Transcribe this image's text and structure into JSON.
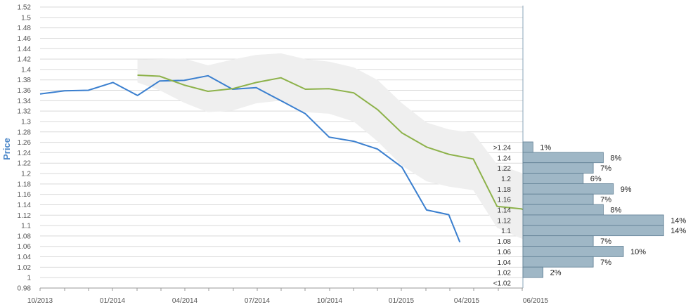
{
  "chart_data": {
    "type": "line",
    "ylabel": "Price",
    "xlabel": "",
    "ylim": [
      0.98,
      1.52
    ],
    "y_ticks": [
      "1.52",
      "1.5",
      "1.48",
      "1.46",
      "1.44",
      "1.42",
      "1.4",
      "1.38",
      "1.36",
      "1.34",
      "1.32",
      "1.3",
      "1.28",
      "1.26",
      "1.24",
      "1.22",
      "1.2",
      "1.18",
      "1.16",
      "1.14",
      "1.12",
      "1.1",
      "1.08",
      "1.06",
      "1.04",
      "1.02",
      "1",
      "0.98"
    ],
    "x_ticks": [
      "10/2013",
      "01/2014",
      "04/2014",
      "07/2014",
      "10/2014",
      "01/2015",
      "04/2015",
      "06/2015"
    ],
    "grid": true,
    "series": [
      {
        "color": "#3a7fcf",
        "points": [
          [
            "2013-10-01",
            1.353
          ],
          [
            "2013-11-01",
            1.359
          ],
          [
            "2013-12-01",
            1.36
          ],
          [
            "2014-01-01",
            1.375
          ],
          [
            "2014-02-01",
            1.35
          ],
          [
            "2014-03-01",
            1.378
          ],
          [
            "2014-04-01",
            1.379
          ],
          [
            "2014-05-01",
            1.388
          ],
          [
            "2014-06-01",
            1.362
          ],
          [
            "2014-07-01",
            1.365
          ],
          [
            "2014-08-01",
            1.34
          ],
          [
            "2014-09-01",
            1.315
          ],
          [
            "2014-10-01",
            1.27
          ],
          [
            "2014-11-01",
            1.262
          ],
          [
            "2014-12-01",
            1.247
          ],
          [
            "2015-01-01",
            1.212
          ],
          [
            "2015-02-01",
            1.13
          ],
          [
            "2015-03-01",
            1.121
          ],
          [
            "2015-03-15",
            1.068
          ]
        ]
      },
      {
        "color": "#8db24a",
        "points": [
          [
            "2014-02-01",
            1.389
          ],
          [
            "2014-03-01",
            1.387
          ],
          [
            "2014-04-01",
            1.37
          ],
          [
            "2014-05-01",
            1.358
          ],
          [
            "2014-06-01",
            1.363
          ],
          [
            "2014-07-01",
            1.375
          ],
          [
            "2014-08-01",
            1.384
          ],
          [
            "2014-09-01",
            1.362
          ],
          [
            "2014-10-01",
            1.363
          ],
          [
            "2014-11-01",
            1.355
          ],
          [
            "2014-12-01",
            1.323
          ],
          [
            "2015-01-01",
            1.278
          ],
          [
            "2015-02-01",
            1.251
          ],
          [
            "2015-03-01",
            1.237
          ],
          [
            "2015-04-01",
            1.228
          ],
          [
            "2015-05-01",
            1.137
          ],
          [
            "2015-06-01",
            1.132
          ],
          [
            "2015-06-15",
            1.121
          ]
        ]
      }
    ],
    "band": {
      "color": "#efefef",
      "upper": [
        [
          "2014-02-01",
          1.419
        ],
        [
          "2014-04-01",
          1.421
        ],
        [
          "2014-05-01",
          1.408
        ],
        [
          "2014-06-01",
          1.419
        ],
        [
          "2014-07-01",
          1.428
        ],
        [
          "2014-08-01",
          1.431
        ],
        [
          "2014-09-01",
          1.42
        ],
        [
          "2014-10-01",
          1.415
        ],
        [
          "2014-11-01",
          1.404
        ],
        [
          "2014-12-01",
          1.38
        ],
        [
          "2015-01-01",
          1.335
        ],
        [
          "2015-02-01",
          1.298
        ],
        [
          "2015-03-01",
          1.285
        ],
        [
          "2015-04-01",
          1.278
        ],
        [
          "2015-05-01",
          1.218
        ],
        [
          "2015-06-01",
          1.201
        ],
        [
          "2015-06-15",
          1.193
        ]
      ],
      "lower": [
        [
          "2014-02-01",
          1.375
        ],
        [
          "2014-03-01",
          1.36
        ],
        [
          "2014-04-01",
          1.336
        ],
        [
          "2014-05-01",
          1.318
        ],
        [
          "2014-06-01",
          1.321
        ],
        [
          "2014-07-01",
          1.335
        ],
        [
          "2014-08-01",
          1.34
        ],
        [
          "2014-09-01",
          1.318
        ],
        [
          "2014-10-01",
          1.315
        ],
        [
          "2014-11-01",
          1.3
        ],
        [
          "2014-12-01",
          1.262
        ],
        [
          "2015-01-01",
          1.215
        ],
        [
          "2015-02-01",
          1.185
        ],
        [
          "2015-03-01",
          1.175
        ],
        [
          "2015-04-01",
          1.168
        ],
        [
          "2015-05-01",
          1.096
        ],
        [
          "2015-06-01",
          1.075
        ],
        [
          "2015-06-15",
          1.068
        ]
      ]
    },
    "histogram": {
      "bar_color": "#9fb7c6",
      "bins": [
        {
          "label": ">1.24",
          "pct": 1,
          "pct_label": "1%"
        },
        {
          "label": "1.24",
          "pct": 8,
          "pct_label": "8%"
        },
        {
          "label": "1.22",
          "pct": 7,
          "pct_label": "7%"
        },
        {
          "label": "1.2",
          "pct": 6,
          "pct_label": "6%"
        },
        {
          "label": "1.18",
          "pct": 9,
          "pct_label": "9%"
        },
        {
          "label": "1.16",
          "pct": 7,
          "pct_label": "7%"
        },
        {
          "label": "1.14",
          "pct": 8,
          "pct_label": "8%"
        },
        {
          "label": "1.12",
          "pct": 14,
          "pct_label": "14%"
        },
        {
          "label": "1.1",
          "pct": 14,
          "pct_label": "14%"
        },
        {
          "label": "1.08",
          "pct": 7,
          "pct_label": "7%"
        },
        {
          "label": "1.06",
          "pct": 10,
          "pct_label": "10%"
        },
        {
          "label": "1.04",
          "pct": 7,
          "pct_label": "7%"
        },
        {
          "label": "1.02",
          "pct": 2,
          "pct_label": "2%"
        },
        {
          "label": "<1.02",
          "pct": 0,
          "pct_label": ""
        }
      ]
    }
  }
}
